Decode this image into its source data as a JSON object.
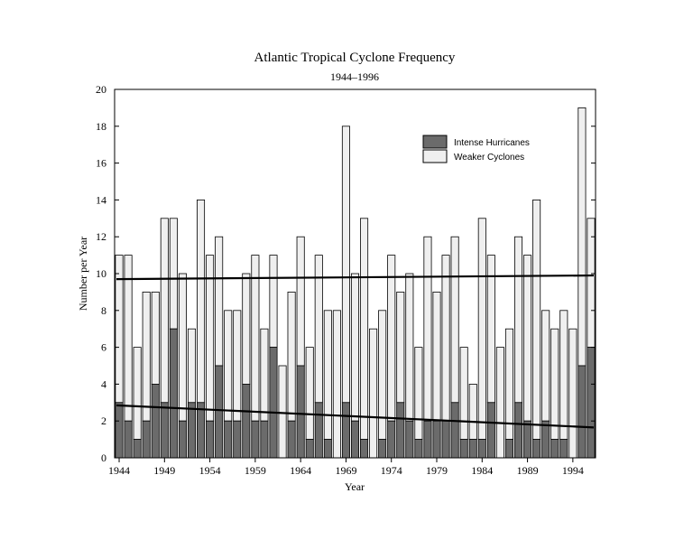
{
  "colors": {
    "intense": "#6b6b6b",
    "weaker": "#efefef",
    "bar_stroke": "#000000",
    "trend_line": "#000000"
  },
  "chart_data": {
    "type": "bar",
    "stacked": true,
    "title": "Atlantic Tropical Cyclone Frequency",
    "subtitle": "1944–1996",
    "xlabel": "Year",
    "ylabel": "Number per Year",
    "ylim": [
      0,
      20
    ],
    "yticks": [
      0,
      2,
      4,
      6,
      8,
      10,
      12,
      14,
      16,
      18,
      20
    ],
    "xticks": [
      "1944",
      "1949",
      "1954",
      "1959",
      "1964",
      "1969",
      "1974",
      "1979",
      "1984",
      "1989",
      "1994"
    ],
    "grid": false,
    "legend_position": "top-right",
    "categories": [
      "1944",
      "1945",
      "1946",
      "1947",
      "1948",
      "1949",
      "1950",
      "1951",
      "1952",
      "1953",
      "1954",
      "1955",
      "1956",
      "1957",
      "1958",
      "1959",
      "1960",
      "1961",
      "1962",
      "1963",
      "1964",
      "1965",
      "1966",
      "1967",
      "1968",
      "1969",
      "1970",
      "1971",
      "1972",
      "1973",
      "1974",
      "1975",
      "1976",
      "1977",
      "1978",
      "1979",
      "1980",
      "1981",
      "1982",
      "1983",
      "1984",
      "1985",
      "1986",
      "1987",
      "1988",
      "1989",
      "1990",
      "1991",
      "1992",
      "1993",
      "1994",
      "1995",
      "1996"
    ],
    "series": [
      {
        "name": "Intense Hurricanes",
        "values": [
          3,
          2,
          1,
          2,
          4,
          3,
          7,
          2,
          3,
          3,
          2,
          5,
          2,
          2,
          4,
          2,
          2,
          6,
          0,
          2,
          5,
          1,
          3,
          1,
          0,
          3,
          2,
          1,
          0,
          1,
          2,
          3,
          2,
          1,
          2,
          2,
          2,
          3,
          1,
          1,
          1,
          3,
          0,
          1,
          3,
          2,
          1,
          2,
          1,
          1,
          0,
          5,
          6
        ]
      },
      {
        "name": "Weaker Cyclones",
        "values": [
          8,
          9,
          5,
          7,
          5,
          10,
          6,
          8,
          4,
          11,
          9,
          7,
          6,
          6,
          6,
          9,
          5,
          5,
          5,
          7,
          7,
          5,
          8,
          7,
          8,
          15,
          8,
          12,
          7,
          7,
          9,
          6,
          8,
          5,
          10,
          7,
          9,
          9,
          5,
          3,
          12,
          8,
          6,
          6,
          9,
          9,
          13,
          6,
          6,
          7,
          7,
          14,
          7
        ]
      }
    ],
    "trend_lines": [
      {
        "series": "Total",
        "x": [
          "1944",
          "1996"
        ],
        "y": [
          9.7,
          9.9
        ]
      },
      {
        "series": "Intense Hurricanes",
        "x": [
          "1944",
          "1996"
        ],
        "y": [
          2.85,
          1.65
        ]
      }
    ]
  }
}
